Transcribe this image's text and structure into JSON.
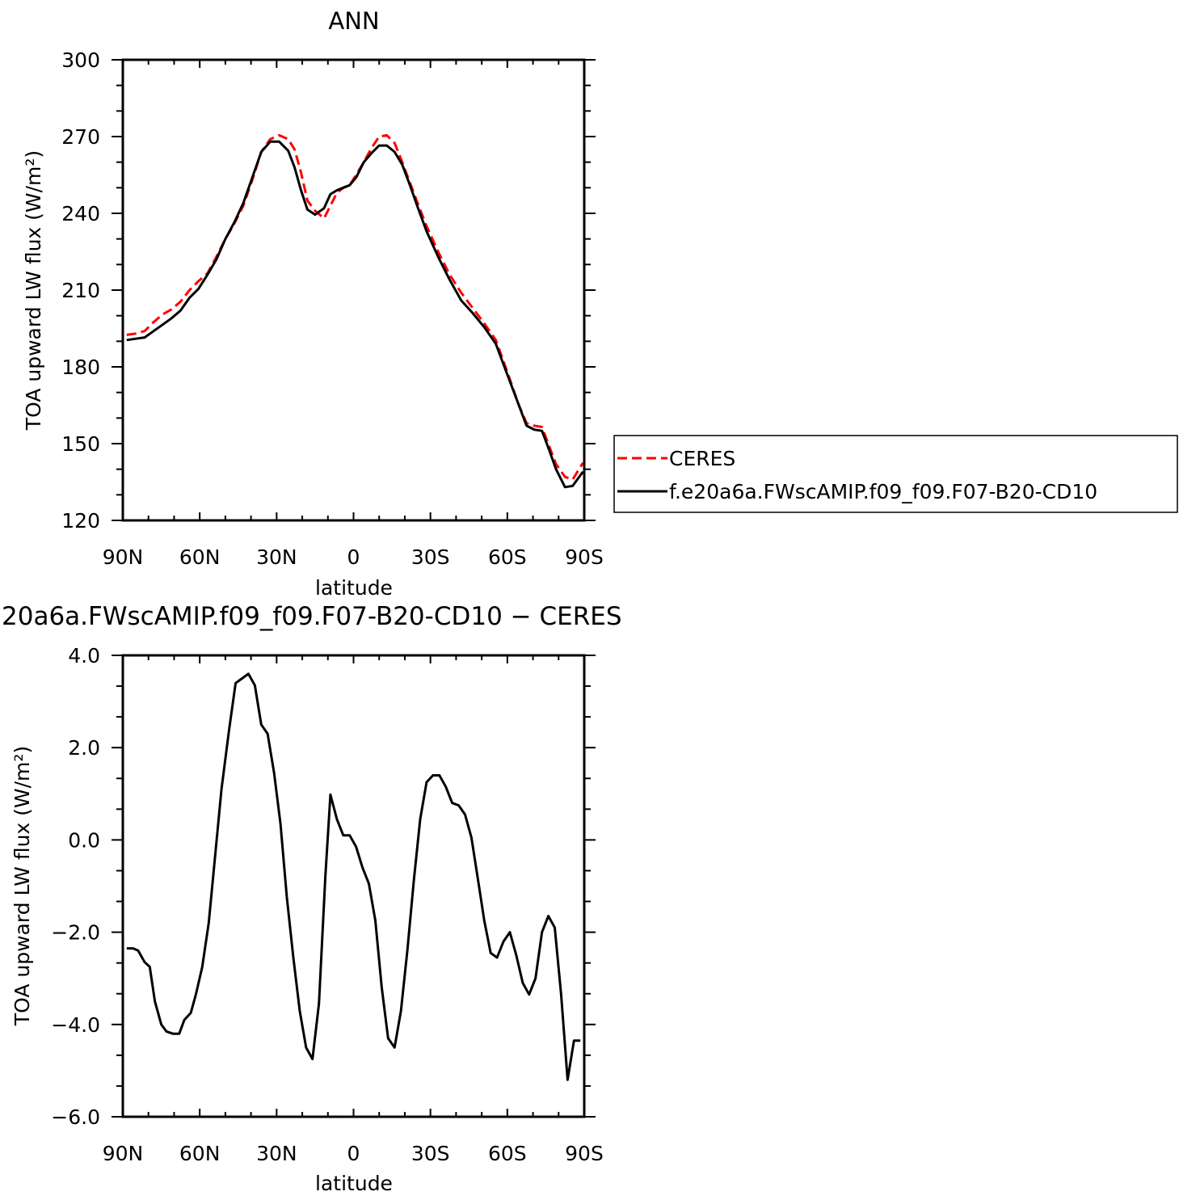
{
  "chart_data": [
    {
      "type": "line",
      "title": "ANN",
      "xlabel": "latitude",
      "ylabel": "TOA upward LW flux (W/m²)",
      "xlim": [
        -90,
        90
      ],
      "ylim": [
        120,
        300
      ],
      "xticks": [
        -90,
        -60,
        -30,
        0,
        30,
        60,
        90
      ],
      "xtick_labels": [
        "90N",
        "60N",
        "30N",
        "0",
        "30S",
        "60S",
        "90S"
      ],
      "yticks": [
        120,
        150,
        180,
        210,
        240,
        270,
        300
      ],
      "ytick_labels": [
        "120",
        "150",
        "180",
        "210",
        "240",
        "270",
        "300"
      ],
      "grid": false,
      "legend_position": "right",
      "series": [
        {
          "name": "CERES",
          "color": "#ff0000",
          "dash": "dashed",
          "x": [
            -88.5,
            -85,
            -81.5,
            -78,
            -74.5,
            -71,
            -67.5,
            -64,
            -60.5,
            -57,
            -53.5,
            -50,
            -46.5,
            -43,
            -39.5,
            -36,
            -32.5,
            -29,
            -25.5,
            -23,
            -20.5,
            -18,
            -15,
            -11.5,
            -9,
            -6.5,
            -4,
            -1.5,
            1,
            4,
            7,
            10,
            13,
            16,
            19,
            22,
            25,
            28.5,
            33,
            37.5,
            42,
            46.5,
            51,
            55.5,
            60,
            64.5,
            67.5,
            70.5,
            73.5,
            76.5,
            79,
            82.5,
            85.5,
            89.5
          ],
          "y": [
            192.5,
            193,
            194,
            197.5,
            200.5,
            202.5,
            205.5,
            210,
            213.5,
            216.5,
            223,
            230,
            236,
            243,
            253,
            264,
            269,
            270.5,
            269,
            265,
            256,
            245,
            241,
            238,
            243,
            248,
            250,
            251,
            255,
            260,
            265.5,
            270,
            270.5,
            267.5,
            260,
            252,
            244,
            235,
            225,
            216,
            209,
            203,
            197,
            190.5,
            178,
            165,
            158,
            157,
            156.5,
            148.5,
            142,
            137,
            136,
            142.5
          ]
        },
        {
          "name": "f.e20a6a.FWscAMIP.f09_f09.F07-B20-CD10",
          "color": "#000000",
          "dash": "solid",
          "x": [
            -88.5,
            -85,
            -81.5,
            -78,
            -74.5,
            -71,
            -67.5,
            -64,
            -60.5,
            -57,
            -53.5,
            -50,
            -46.5,
            -43,
            -39.5,
            -36,
            -32.5,
            -29,
            -25.5,
            -23,
            -20.5,
            -18,
            -15,
            -11.5,
            -9,
            -6.5,
            -4,
            -1.5,
            1,
            4,
            7,
            10,
            13,
            16,
            19,
            22,
            25,
            28.5,
            33,
            37.5,
            42,
            46.5,
            51,
            55.5,
            60,
            64.5,
            67.5,
            70.5,
            73.5,
            76.5,
            79,
            82.5,
            85.5,
            89.5
          ],
          "y": [
            190.5,
            191,
            191.5,
            194,
            196.5,
            199,
            202,
            207,
            210.5,
            216,
            222,
            230,
            236.5,
            244,
            254,
            264,
            268,
            268,
            264.5,
            258,
            249,
            241.5,
            239.5,
            242,
            247.5,
            249,
            250,
            251,
            254,
            260,
            263.5,
            266.5,
            266.5,
            264,
            259,
            251,
            242.5,
            233,
            223,
            214,
            206,
            201,
            195.5,
            189,
            177,
            165,
            157,
            155.5,
            155,
            147,
            140,
            133,
            133.5,
            139
          ]
        }
      ]
    },
    {
      "type": "line",
      "title": "20a6a.FWscAMIP.f09_f09.F07-B20-CD10 − CERES",
      "xlabel": "latitude",
      "ylabel": "TOA upward LW flux (W/m²)",
      "xlim": [
        -90,
        90
      ],
      "ylim": [
        -6,
        4
      ],
      "xticks": [
        -90,
        -60,
        -30,
        0,
        30,
        60,
        90
      ],
      "xtick_labels": [
        "90N",
        "60N",
        "30N",
        "0",
        "30S",
        "60S",
        "90S"
      ],
      "yticks": [
        -6,
        -4,
        -2,
        0,
        2,
        4
      ],
      "ytick_labels": [
        "−6.0",
        "−4.0",
        "−2.0",
        "0.0",
        "2.0",
        "4.0"
      ],
      "grid": false,
      "series": [
        {
          "color": "#000000",
          "dash": "solid",
          "x": [
            -88.5,
            -86,
            -84,
            -81.5,
            -79.5,
            -77.5,
            -75,
            -73,
            -70.5,
            -68,
            -66,
            -63.5,
            -61.5,
            -59,
            -56.5,
            -54,
            -51.5,
            -48.5,
            -46,
            -43.5,
            -41,
            -38.5,
            -36,
            -33.5,
            -31,
            -28.5,
            -26,
            -23.5,
            -21,
            -18.5,
            -16,
            -13.5,
            -11,
            -9,
            -6.5,
            -4,
            -1.5,
            1,
            3.5,
            6,
            8.5,
            11,
            13.5,
            16,
            18.5,
            21,
            23.5,
            26,
            28.5,
            31,
            33.5,
            36,
            38.5,
            41,
            43.5,
            46,
            48.5,
            51,
            53.5,
            56,
            58.5,
            61,
            63.5,
            66,
            68.5,
            71,
            73.5,
            76,
            78.5,
            81,
            83.5,
            86,
            88.5
          ],
          "y": [
            -2.35,
            -2.35,
            -2.4,
            -2.65,
            -2.75,
            -3.5,
            -4.0,
            -4.15,
            -4.2,
            -4.2,
            -3.9,
            -3.75,
            -3.35,
            -2.75,
            -1.8,
            -0.35,
            1.1,
            2.4,
            3.4,
            3.5,
            3.6,
            3.35,
            2.5,
            2.3,
            1.45,
            0.35,
            -1.25,
            -2.55,
            -3.7,
            -4.5,
            -4.75,
            -3.55,
            -0.8,
            0.98,
            0.45,
            0.1,
            0.1,
            -0.15,
            -0.6,
            -0.95,
            -1.75,
            -3.2,
            -4.3,
            -4.5,
            -3.7,
            -2.4,
            -0.9,
            0.45,
            1.25,
            1.4,
            1.4,
            1.15,
            0.8,
            0.75,
            0.55,
            0.05,
            -0.85,
            -1.75,
            -2.45,
            -2.55,
            -2.2,
            -2.0,
            -2.5,
            -3.1,
            -3.35,
            -3.0,
            -2.0,
            -1.65,
            -1.9,
            -3.35,
            -5.2,
            -4.35,
            -4.35
          ]
        }
      ]
    }
  ],
  "legend": {
    "items": [
      {
        "label": "CERES",
        "color": "#ff0000",
        "dash": "dashed"
      },
      {
        "label": "f.e20a6a.FWscAMIP.f09_f09.F07-B20-CD10",
        "color": "#000000",
        "dash": "solid"
      }
    ]
  }
}
